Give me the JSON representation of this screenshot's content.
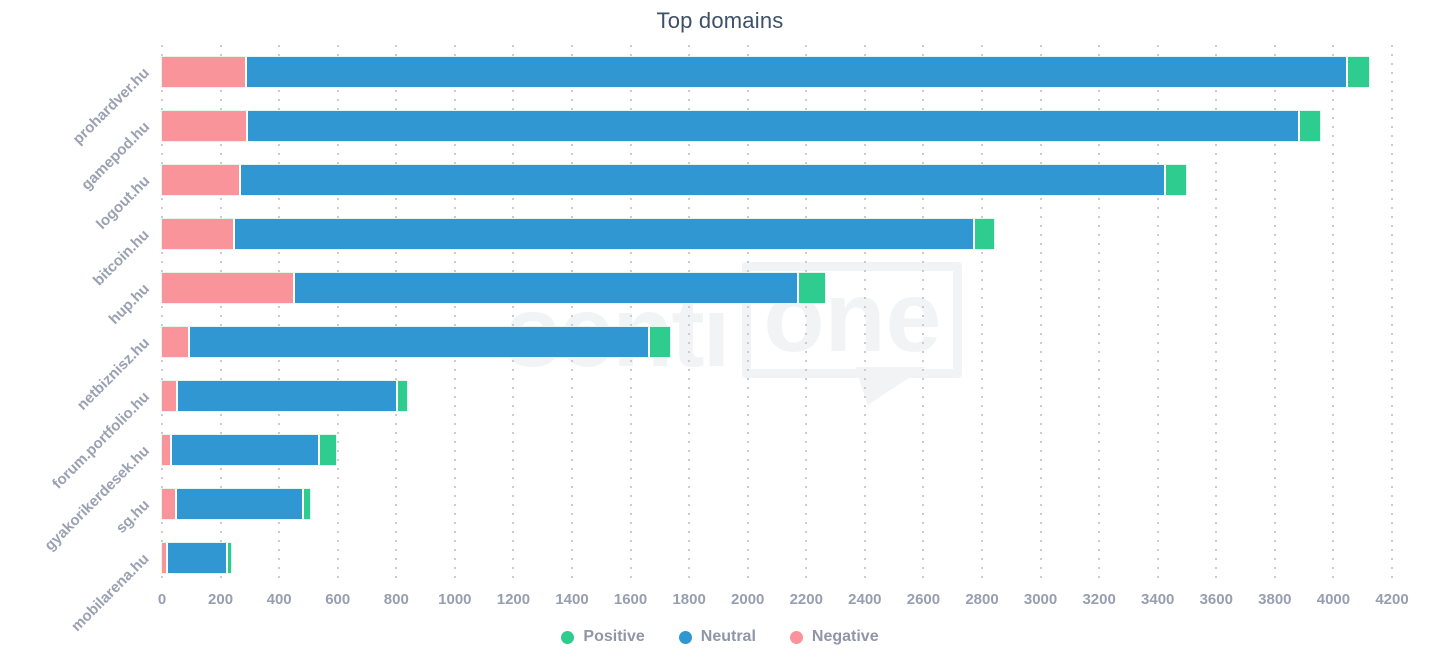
{
  "title": "Top domains",
  "watermark": {
    "prefix": "senti",
    "boxed": "one"
  },
  "colors": {
    "positive": "#2ecc8f",
    "neutral": "#3097d3",
    "negative": "#f9949b",
    "title_text": "#3d5068",
    "axis_text": "#9aa1b2",
    "legend_text": "#8f96a8",
    "grid_dot": "#c9ccd3",
    "watermark": "#f2f3f5"
  },
  "legend": [
    {
      "label": "Positive",
      "color": "#2ecc8f"
    },
    {
      "label": "Neutral",
      "color": "#3097d3"
    },
    {
      "label": "Negative",
      "color": "#f9949b"
    }
  ],
  "chart_data": {
    "type": "bar",
    "orientation": "horizontal",
    "stacked": true,
    "title": "Top domains",
    "categories": [
      "prohardver.hu",
      "gamepod.hu",
      "logout.hu",
      "bitcoin.hu",
      "hup.hu",
      "netbiznisz.hu",
      "forum.portfolio.hu",
      "gyakorikerdesek.hu",
      "sg.hu",
      "mobilarena.hu"
    ],
    "series": [
      {
        "name": "Negative",
        "color": "#f9949b",
        "values": [
          290,
          295,
          270,
          250,
          455,
          95,
          55,
          35,
          50,
          20
        ]
      },
      {
        "name": "Neutral",
        "color": "#3097d3",
        "values": [
          3760,
          3590,
          3160,
          2525,
          1720,
          1570,
          750,
          505,
          435,
          205
        ]
      },
      {
        "name": "Positive",
        "color": "#2ecc8f",
        "values": [
          70,
          70,
          65,
          65,
          90,
          70,
          30,
          55,
          20,
          10
        ]
      }
    ],
    "totals": [
      4120,
      3955,
      3495,
      2840,
      2265,
      1735,
      835,
      595,
      505,
      235
    ],
    "xlim": [
      0,
      4200
    ],
    "xticks": [
      0,
      200,
      400,
      600,
      800,
      1000,
      1200,
      1400,
      1600,
      1800,
      2000,
      2200,
      2400,
      2600,
      2800,
      3000,
      3200,
      3400,
      3600,
      3800,
      4000,
      4200
    ],
    "grid": "dotted-vertical",
    "legend_position": "bottom",
    "legend_order": [
      "Positive",
      "Neutral",
      "Negative"
    ]
  }
}
